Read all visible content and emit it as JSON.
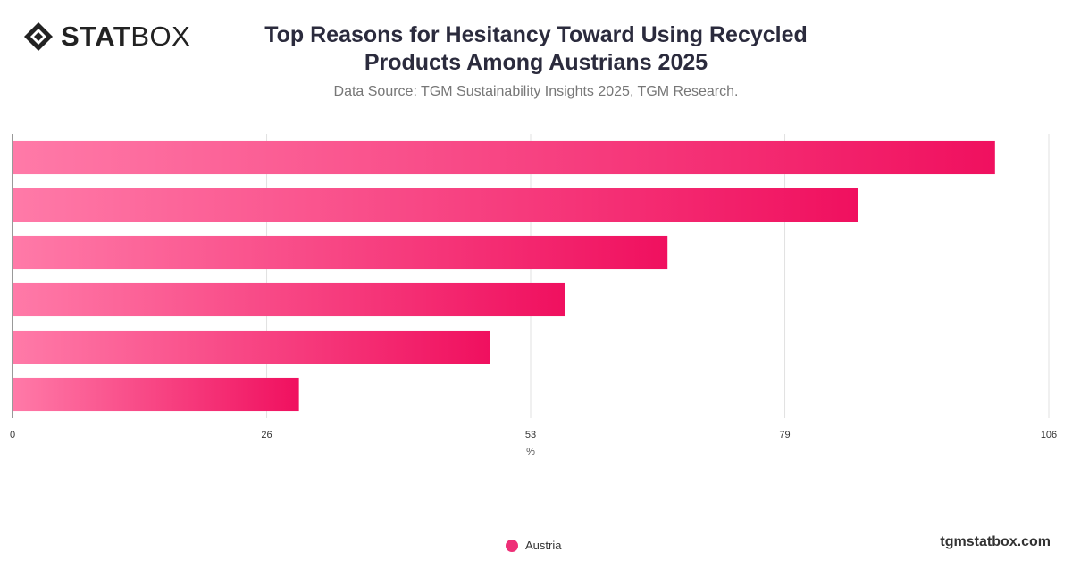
{
  "brand": {
    "logo_bold": "STAT",
    "logo_regular": "BOX",
    "watermark": "tgmstatbox.com"
  },
  "colors": {
    "bar_start": "#ff7aa8",
    "bar_end": "#f0105f",
    "grid": "#e2e2e2",
    "axis": "#333333",
    "text": "#333333"
  },
  "chart_data": {
    "type": "bar",
    "orientation": "horizontal",
    "title": "Top Reasons for Hesitancy Toward Using Recycled Products Among Austrians 2025",
    "subtitle": "Data Source: TGM Sustainability Insights 2025, TGM Research.",
    "xlabel": "%",
    "xlim": [
      0,
      106
    ],
    "xticks": [
      0,
      26,
      53,
      79,
      106
    ],
    "grid": true,
    "legend_position": "bottom",
    "series": [
      {
        "name": "Austria",
        "values": [
          100.5,
          86.5,
          67,
          56.5,
          48.8,
          29.3
        ]
      }
    ]
  }
}
